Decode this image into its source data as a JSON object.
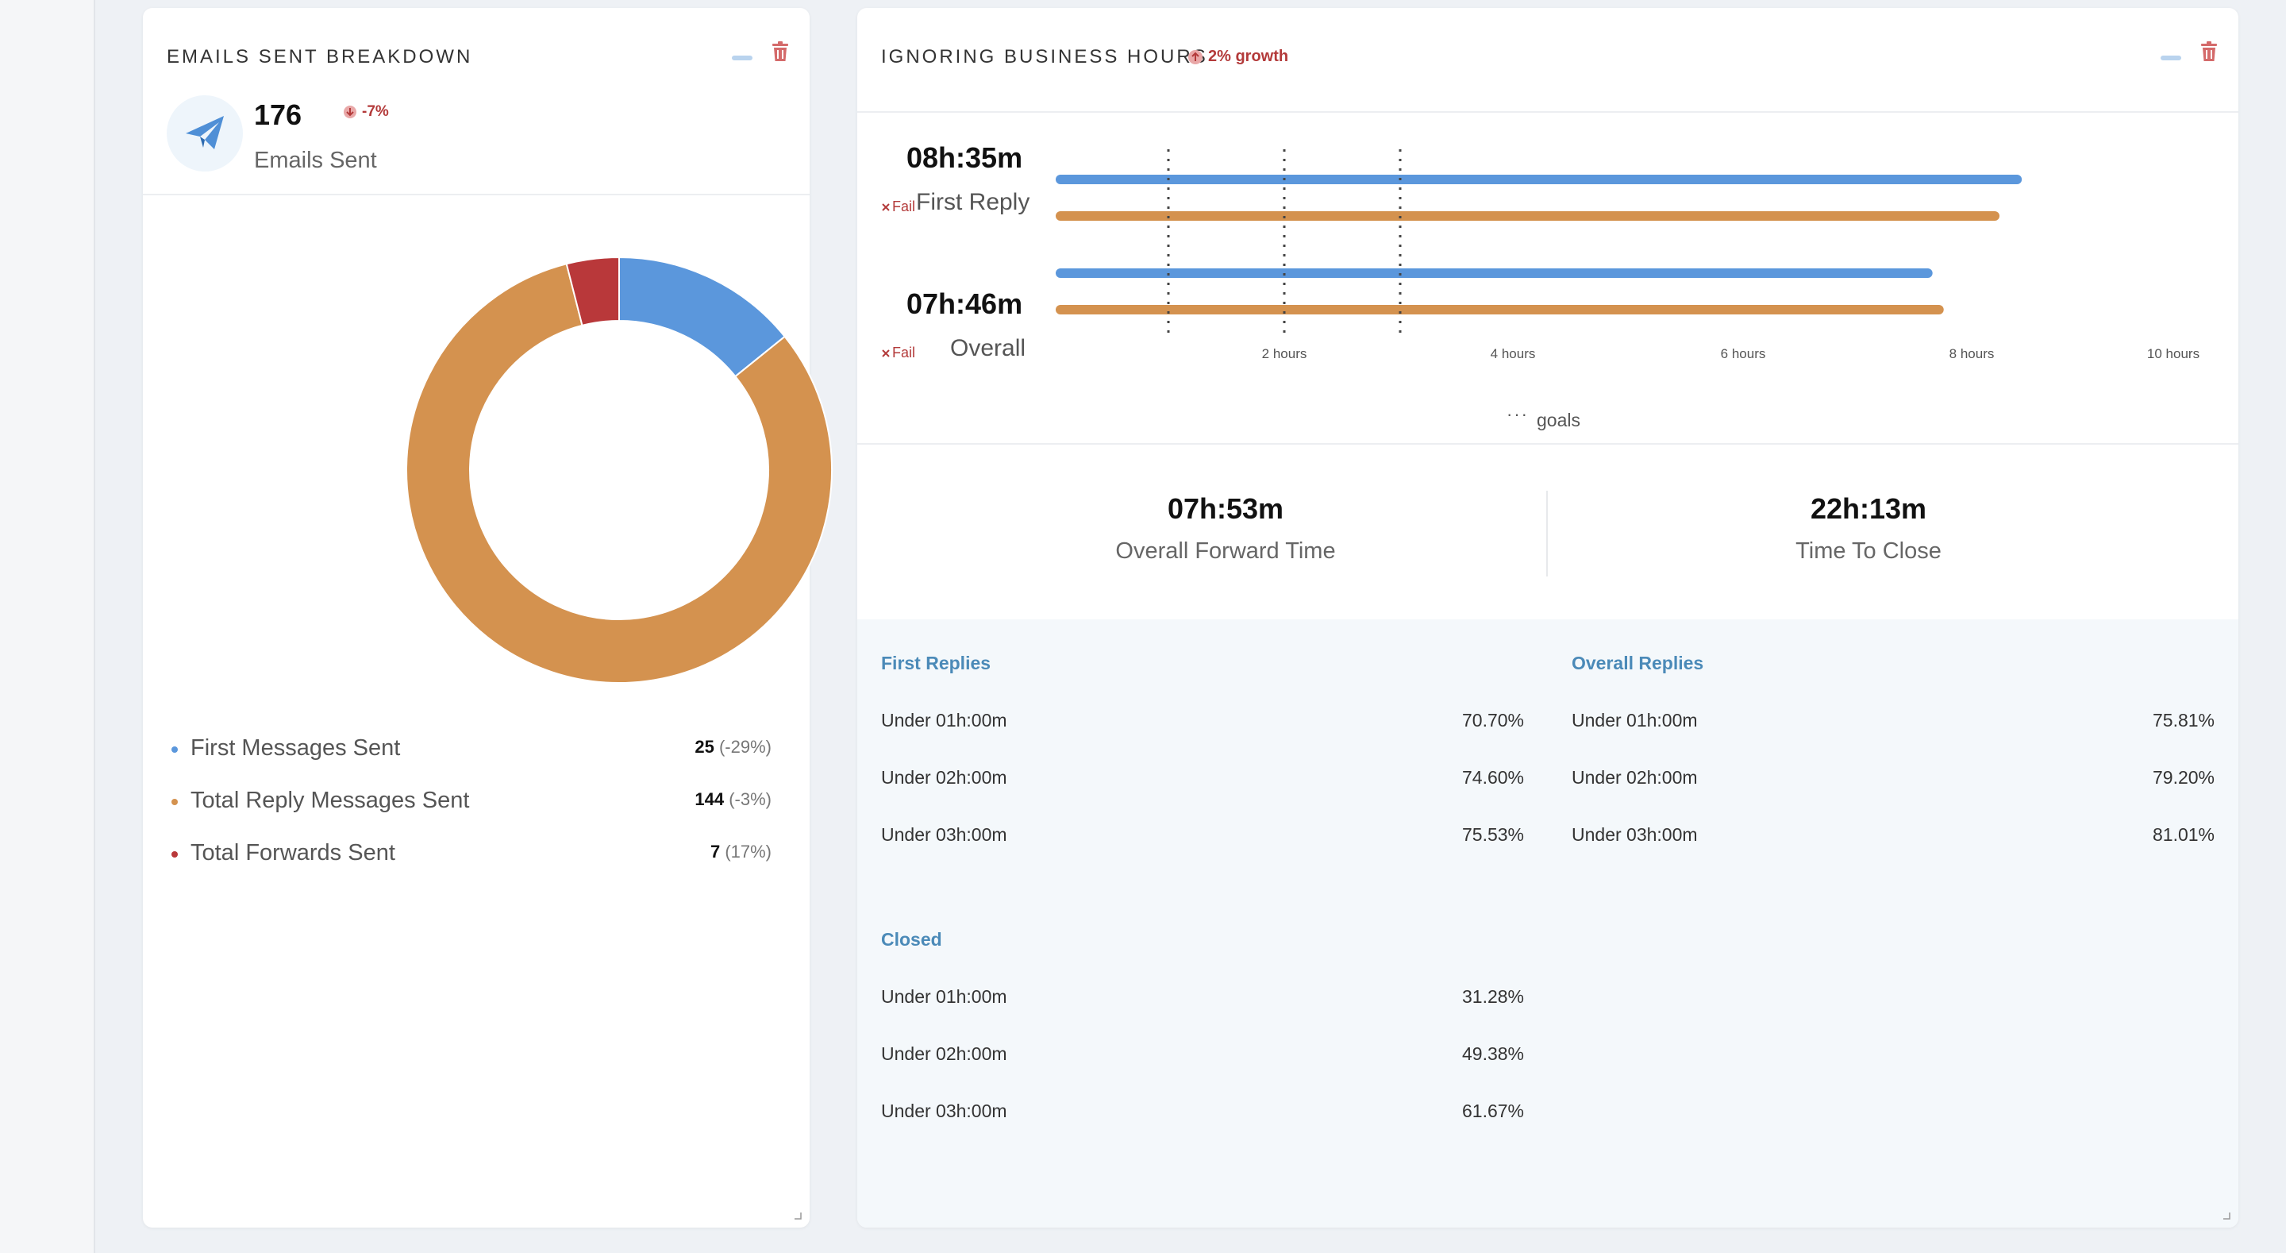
{
  "emails_card": {
    "title": "EMAILS SENT BREAKDOWN",
    "count": "176",
    "delta": "-7%",
    "count_label": "Emails Sent",
    "legend": [
      {
        "label": "First Messages Sent",
        "value": "25",
        "change": "(-29%)",
        "color": "#5b97dc"
      },
      {
        "label": "Total Reply Messages Sent",
        "value": "144",
        "change": "(-3%)",
        "color": "#d4924f"
      },
      {
        "label": "Total Forwards Sent",
        "value": "7",
        "change": "(17%)",
        "color": "#b9383a"
      }
    ]
  },
  "business_card": {
    "title": "IGNORING BUSINESS HOURS",
    "growth": "2% growth",
    "first_reply_time": "08h:35m",
    "first_reply_fail": "Fail",
    "first_reply_label": "First Reply",
    "overall_time": "07h:46m",
    "overall_fail": "Fail",
    "overall_label": "Overall",
    "goals_label": "goals",
    "stats": [
      {
        "value": "07h:53m",
        "label": "Overall Forward Time"
      },
      {
        "value": "22h:13m",
        "label": "Time To Close"
      }
    ],
    "first_replies": {
      "title": "First Replies",
      "rows": [
        {
          "label": "Under 01h:00m",
          "value": "70.70%"
        },
        {
          "label": "Under 02h:00m",
          "value": "74.60%"
        },
        {
          "label": "Under 03h:00m",
          "value": "75.53%"
        }
      ]
    },
    "overall_replies": {
      "title": "Overall Replies",
      "rows": [
        {
          "label": "Under 01h:00m",
          "value": "75.81%"
        },
        {
          "label": "Under 02h:00m",
          "value": "79.20%"
        },
        {
          "label": "Under 03h:00m",
          "value": "81.01%"
        }
      ]
    },
    "closed": {
      "title": "Closed",
      "rows": [
        {
          "label": "Under 01h:00m",
          "value": "31.28%"
        },
        {
          "label": "Under 02h:00m",
          "value": "49.38%"
        },
        {
          "label": "Under 03h:00m",
          "value": "61.67%"
        }
      ]
    }
  },
  "colors": {
    "blue": "#5b97dc",
    "orange": "#d4924f",
    "red": "#b9383a",
    "fail": "#b33a3a",
    "panel_title": "#4b8ab8"
  },
  "chart_data": [
    {
      "type": "pie",
      "categories": [
        "First Messages Sent",
        "Total Reply Messages Sent",
        "Total Forwards Sent"
      ],
      "values": [
        25,
        144,
        7
      ],
      "colors": [
        "#5b97dc",
        "#d4924f",
        "#b9383a"
      ]
    },
    {
      "type": "bar",
      "orientation": "horizontal",
      "categories": [
        "First Reply",
        "Overall"
      ],
      "x_ticks": [
        "2 hours",
        "4 hours",
        "6 hours",
        "8 hours",
        "10 hours"
      ],
      "xlim": [
        0,
        10
      ],
      "goals": [
        1,
        2,
        3
      ],
      "series": [
        {
          "color": "#5b97dc",
          "values": [
            8.6,
            7.8
          ]
        },
        {
          "color": "#d4924f",
          "values": [
            8.4,
            7.9
          ]
        }
      ]
    }
  ]
}
